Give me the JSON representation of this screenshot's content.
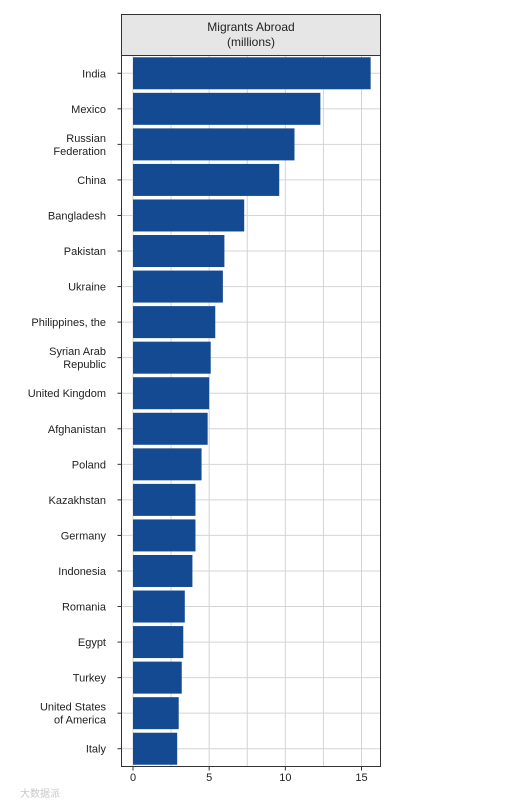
{
  "chart_data": {
    "type": "bar",
    "orientation": "horizontal",
    "title_lines": [
      "Migrants Abroad",
      "(millions)"
    ],
    "xlabel": "",
    "ylabel": "",
    "xlim": [
      0,
      17
    ],
    "xticks": [
      0,
      5,
      10,
      15
    ],
    "grid": true,
    "categories": [
      [
        "India"
      ],
      [
        "Mexico"
      ],
      [
        "Russian",
        "Federation"
      ],
      [
        "China"
      ],
      [
        "Bangladesh"
      ],
      [
        "Pakistan"
      ],
      [
        "Ukraine"
      ],
      [
        "Philippines, the"
      ],
      [
        "Syrian Arab",
        "Republic"
      ],
      [
        "United Kingdom"
      ],
      [
        "Afghanistan"
      ],
      [
        "Poland"
      ],
      [
        "Kazakhstan"
      ],
      [
        "Germany"
      ],
      [
        "Indonesia"
      ],
      [
        "Romania"
      ],
      [
        "Egypt"
      ],
      [
        "Turkey"
      ],
      [
        "United States",
        "of America"
      ],
      [
        "Italy"
      ]
    ],
    "values": [
      15.6,
      12.3,
      10.6,
      9.6,
      7.3,
      6.0,
      5.9,
      5.4,
      5.1,
      5.0,
      4.9,
      4.5,
      4.1,
      4.1,
      3.9,
      3.4,
      3.3,
      3.2,
      3.0,
      2.9
    ],
    "bar_color": "#134a92"
  },
  "watermark": "大数据派"
}
